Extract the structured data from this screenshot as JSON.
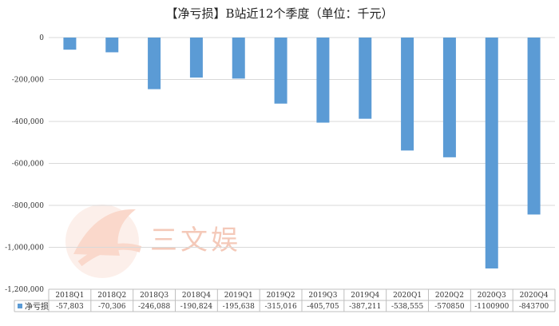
{
  "chart_data": {
    "type": "bar",
    "title": "【净亏损】B站近12个季度（单位：千元）",
    "categories": [
      "2018Q1",
      "2018Q2",
      "2018Q3",
      "2018Q4",
      "2019Q1",
      "2019Q2",
      "2019Q3",
      "2019Q4",
      "2020Q1",
      "2020Q2",
      "2020Q3",
      "2020Q4"
    ],
    "series": [
      {
        "name": "净亏损",
        "values": [
          -57803,
          -70306,
          -246088,
          -190824,
          -195638,
          -315016,
          -405705,
          -387211,
          -538555,
          -570850,
          -1100900,
          -843700
        ],
        "labels": [
          "-57,803",
          "-70,306",
          "-246,088",
          "-190,824",
          "-195,638",
          "-315,016",
          "-405,705",
          "-387,211",
          "-538,555",
          "-570850",
          "-1100900",
          "-843700"
        ]
      }
    ],
    "ylim": [
      -1200000,
      0
    ],
    "y_ticks": [
      0,
      -200000,
      -400000,
      -600000,
      -800000,
      -1000000,
      -1200000
    ],
    "y_tick_labels": [
      "0",
      "-200,000",
      "-400,000",
      "-600,000",
      "-800,000",
      "-1,000,000",
      "-1,200,000"
    ],
    "grid": true,
    "data_table": true,
    "bar_color": "#5b9bd5"
  },
  "watermark": {
    "text": "三文娱",
    "color": "#f4c9b9"
  }
}
